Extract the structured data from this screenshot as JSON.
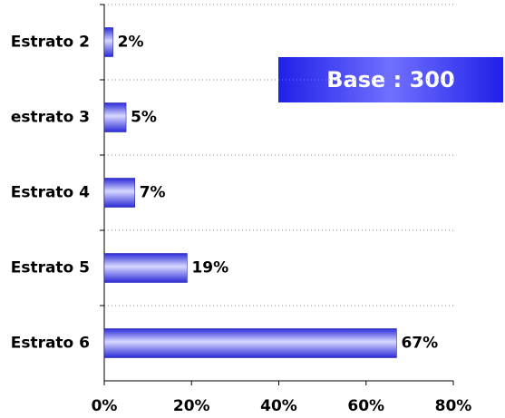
{
  "chart_data": {
    "type": "bar",
    "orientation": "horizontal",
    "categories": [
      "Estrato 2",
      "estrato 3",
      "Estrato 4",
      "Estrato 5",
      "Estrato 6"
    ],
    "values": [
      2,
      5,
      7,
      19,
      67
    ],
    "value_labels": [
      "2%",
      "5%",
      "7%",
      "19%",
      "67%"
    ],
    "color": "#4a4aff",
    "xlim": [
      0,
      80
    ],
    "xticks": [
      {
        "value": 0,
        "label": "0%"
      },
      {
        "value": 20,
        "label": "20%"
      },
      {
        "value": 40,
        "label": "40%"
      },
      {
        "value": 60,
        "label": "60%"
      },
      {
        "value": 80,
        "label": "80%"
      }
    ],
    "annotation": "Base : 300"
  }
}
